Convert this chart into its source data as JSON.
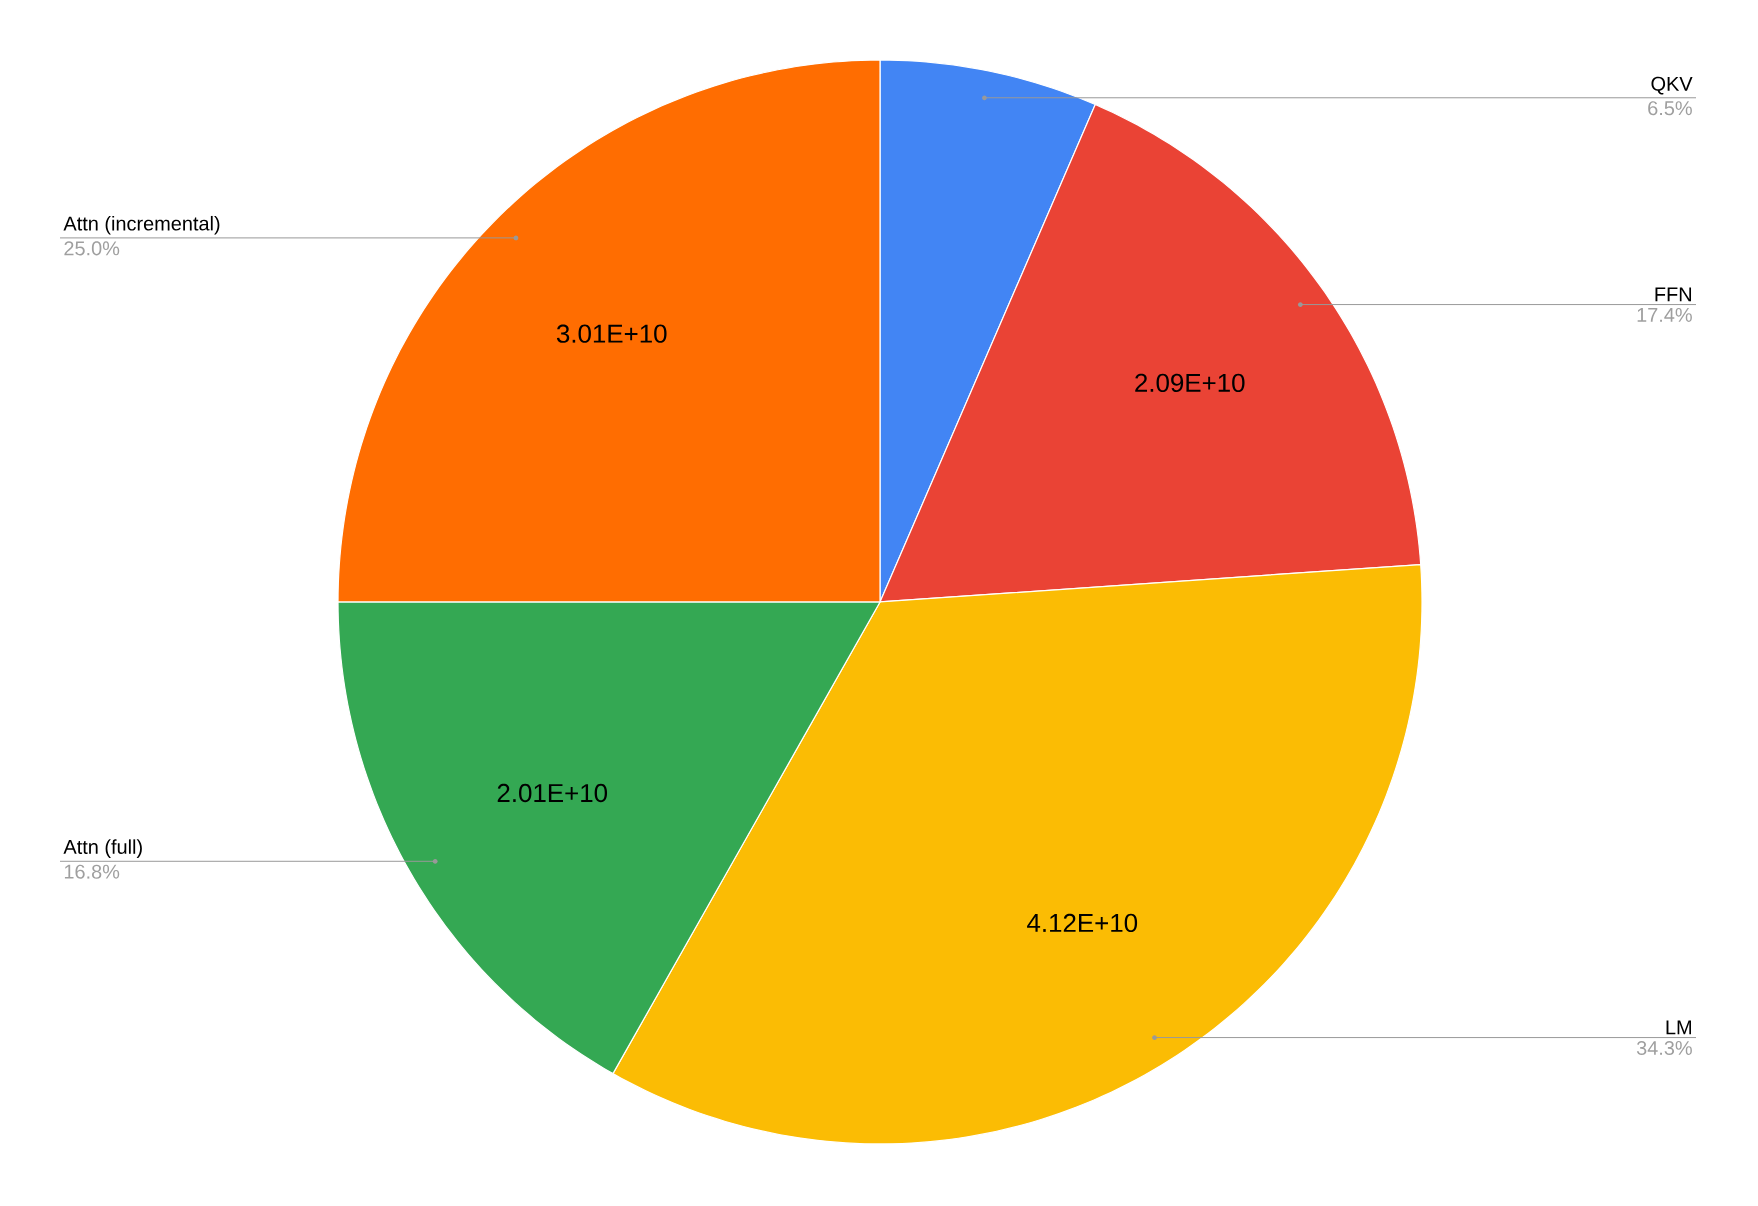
{
  "chart_data": {
    "type": "pie",
    "categories": [
      "QKV",
      "FFN",
      "LM",
      "Attn (full)",
      "Attn (incremental)"
    ],
    "values": [
      6.5,
      17.4,
      34.3,
      16.8,
      25.0
    ],
    "colors": [
      "#4285f4",
      "#ea4335",
      "#fbbc04",
      "#34a853",
      "#ff6d01"
    ],
    "value_labels": [
      "6.5%",
      "17.4%",
      "34.3%",
      "16.8%",
      "25.0%"
    ],
    "annotations": [
      {
        "text": "2.09E+10",
        "x": "FFN"
      },
      {
        "text": "4.12E+10",
        "x": "LM"
      },
      {
        "text": "2.01E+10",
        "x": "Attn (full)"
      },
      {
        "text": "3.01E+10",
        "x": "Attn (incremental)"
      }
    ]
  }
}
